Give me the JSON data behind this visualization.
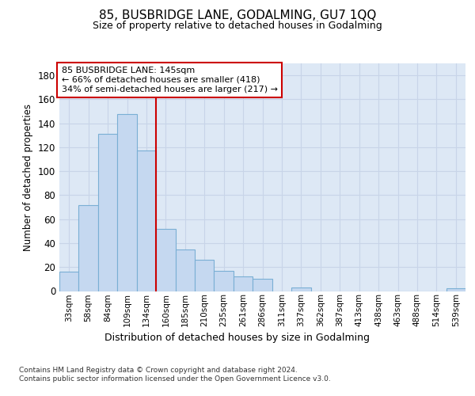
{
  "title": "85, BUSBRIDGE LANE, GODALMING, GU7 1QQ",
  "subtitle": "Size of property relative to detached houses in Godalming",
  "xlabel": "Distribution of detached houses by size in Godalming",
  "ylabel": "Number of detached properties",
  "categories": [
    "33sqm",
    "58sqm",
    "84sqm",
    "109sqm",
    "134sqm",
    "160sqm",
    "185sqm",
    "210sqm",
    "235sqm",
    "261sqm",
    "286sqm",
    "311sqm",
    "337sqm",
    "362sqm",
    "387sqm",
    "413sqm",
    "438sqm",
    "463sqm",
    "488sqm",
    "514sqm",
    "539sqm"
  ],
  "values": [
    16,
    72,
    131,
    148,
    117,
    52,
    35,
    26,
    17,
    12,
    10,
    0,
    3,
    0,
    0,
    0,
    0,
    0,
    0,
    0,
    2
  ],
  "bar_color": "#c5d8f0",
  "bar_edge_color": "#7aafd4",
  "vline_x": 4.5,
  "vline_color": "#cc0000",
  "annotation_line1": "85 BUSBRIDGE LANE: 145sqm",
  "annotation_line2": "← 66% of detached houses are smaller (418)",
  "annotation_line3": "34% of semi-detached houses are larger (217) →",
  "annotation_box_facecolor": "#ffffff",
  "annotation_box_edgecolor": "#cc0000",
  "ylim": [
    0,
    190
  ],
  "yticks": [
    0,
    20,
    40,
    60,
    80,
    100,
    120,
    140,
    160,
    180
  ],
  "grid_color": "#c8d4e8",
  "bg_color": "#dde8f5",
  "footer1": "Contains HM Land Registry data © Crown copyright and database right 2024.",
  "footer2": "Contains public sector information licensed under the Open Government Licence v3.0."
}
